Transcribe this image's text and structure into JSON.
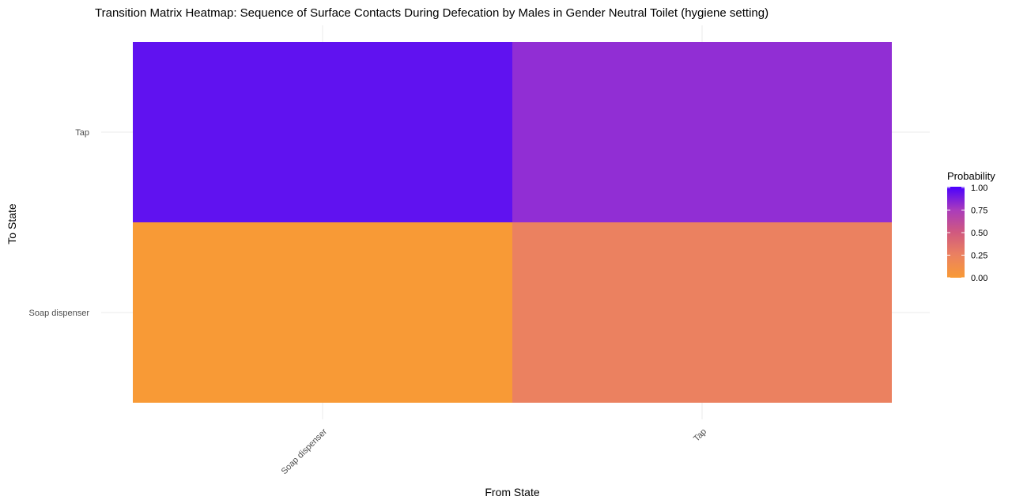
{
  "chart_data": {
    "type": "heatmap",
    "title": "Transition Matrix Heatmap: Sequence of Surface Contacts During Defecation by Males in Gender Neutral Toilet (hygiene setting)",
    "xlabel": "From State",
    "ylabel": "To State",
    "x_categories": [
      "Soap dispenser",
      "Tap"
    ],
    "y_categories": [
      "Soap dispenser",
      "Tap"
    ],
    "cells": [
      {
        "from": "Soap dispenser",
        "to": "Soap dispenser",
        "value": 0.0
      },
      {
        "from": "Soap dispenser",
        "to": "Tap",
        "value": 1.0
      },
      {
        "from": "Tap",
        "to": "Soap dispenser",
        "value": 0.25
      },
      {
        "from": "Tap",
        "to": "Tap",
        "value": 0.75
      }
    ],
    "legend": {
      "title": "Probability",
      "placement": "right",
      "ticks": [
        "0.00",
        "0.25",
        "0.50",
        "0.75",
        "1.00"
      ],
      "range": [
        0,
        1
      ]
    },
    "colors": {
      "low": "#f89a36",
      "mid_low": "#eb8160",
      "mid": "#d0597f",
      "mid_high": "#912ed4",
      "high": "#6012f0"
    },
    "grid": true
  }
}
